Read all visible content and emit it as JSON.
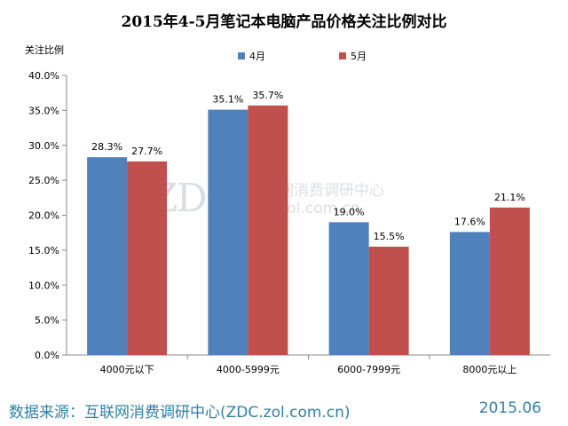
{
  "chart_data": {
    "type": "bar",
    "title": "2015年4-5月笔记本电脑产品价格关注比例对比",
    "ylabel": "关注比例",
    "categories": [
      "4000元以下",
      "4000-5999元",
      "6000-7999元",
      "8000元以上"
    ],
    "series": [
      {
        "name": "4月",
        "color": "#4f81bd",
        "values": [
          28.3,
          35.1,
          19.0,
          17.6
        ],
        "labels": [
          "28.3%",
          "35.1%",
          "19.0%",
          "17.6%"
        ]
      },
      {
        "name": "5月",
        "color": "#c0504d",
        "values": [
          27.7,
          35.7,
          15.5,
          21.1
        ],
        "labels": [
          "27.7%",
          "35.7%",
          "15.5%",
          "21.1%"
        ]
      }
    ],
    "ylim": [
      0,
      40
    ],
    "yticks": [
      "0.0%",
      "5.0%",
      "10.0%",
      "15.0%",
      "20.0%",
      "25.0%",
      "30.0%",
      "35.0%",
      "40.0%"
    ],
    "grid": false,
    "legend_position": "top-center"
  },
  "watermark": {
    "logo": "ZDC",
    "name": "互联网消费调研中心",
    "url": "zdc.zol.com.cn"
  },
  "footer": {
    "source": "数据来源：互联网消费调研中心(ZDC.zol.com.cn)",
    "date": "2015.06"
  }
}
